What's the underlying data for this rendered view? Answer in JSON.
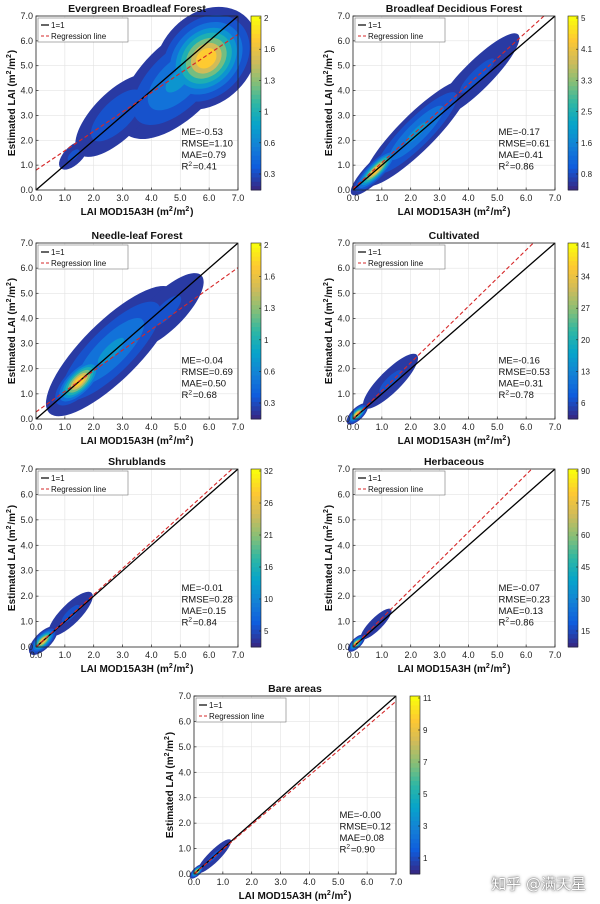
{
  "watermark": "知乎 @满天星",
  "colormap": [
    "#352a87",
    "#0f5cdd",
    "#1481d6",
    "#06a4ca",
    "#2eb7a4",
    "#87bf77",
    "#d1bb59",
    "#fec832",
    "#f9fb0e"
  ],
  "line_colors": {
    "one_to_one": "#000000",
    "regression": "#d62728"
  },
  "chart_data": [
    {
      "type": "scatter",
      "title": "Evergreen Broadleaf Forest",
      "xlabel": "LAI MOD15A3H (m²/m²)",
      "ylabel": "Estimated LAI (m²/m²)",
      "xlim": [
        0,
        7
      ],
      "ylim": [
        0,
        7
      ],
      "xticks": [
        "0.0",
        "1.0",
        "2.0",
        "3.0",
        "4.0",
        "5.0",
        "6.0",
        "7.0"
      ],
      "yticks": [
        "0.0",
        "1.0",
        "2.0",
        "3.0",
        "4.0",
        "5.0",
        "6.0",
        "7.0"
      ],
      "legend": [
        "1=1",
        "Regression line"
      ],
      "legend_position": "top-left",
      "stats": [
        "ME=-0.53",
        "RMSE=1.10",
        "MAE=0.79",
        "R²=0.41"
      ],
      "colorbar_ticks": [
        "2",
        "1.6",
        "1.3",
        "1",
        "0.6",
        "0.3"
      ],
      "regression": {
        "slope": 0.78,
        "intercept": 0.8
      },
      "density_clusters": [
        {
          "x": 5.9,
          "y": 5.3,
          "sx": 0.55,
          "sy": 0.9,
          "rho": 0.1,
          "peak": 1.0
        },
        {
          "x": 4.9,
          "y": 4.4,
          "sx": 0.9,
          "sy": 1.1,
          "rho": 0.5,
          "peak": 0.35
        },
        {
          "x": 2.8,
          "y": 3.0,
          "sx": 0.9,
          "sy": 0.8,
          "rho": 0.6,
          "peak": 0.18
        },
        {
          "x": 1.3,
          "y": 1.4,
          "sx": 0.35,
          "sy": 0.35,
          "rho": 0.5,
          "peak": 0.12
        }
      ]
    },
    {
      "type": "scatter",
      "title": "Broadleaf Decidious Forest",
      "xlabel": "LAI MOD15A3H (m²/m²)",
      "ylabel": "Estimated LAI (m²/m²)",
      "xlim": [
        0,
        7
      ],
      "ylim": [
        0,
        7
      ],
      "xticks": [
        "0.0",
        "1.0",
        "2.0",
        "3.0",
        "4.0",
        "5.0",
        "6.0",
        "7.0"
      ],
      "yticks": [
        "0.0",
        "1.0",
        "2.0",
        "3.0",
        "4.0",
        "5.0",
        "6.0",
        "7.0"
      ],
      "legend": [
        "1=1",
        "Regression line"
      ],
      "legend_position": "top-left",
      "stats": [
        "ME=-0.17",
        "RMSE=0.61",
        "MAE=0.41",
        "R²=0.86"
      ],
      "colorbar_ticks": [
        "5",
        "4.1",
        "3.3",
        "2.5",
        "1.6",
        "0.8"
      ],
      "regression": {
        "slope": 1.05,
        "intercept": 0.05
      },
      "density_clusters": [
        {
          "x": 0.8,
          "y": 0.8,
          "sx": 0.35,
          "sy": 0.35,
          "rho": 0.8,
          "peak": 1.0
        },
        {
          "x": 2.2,
          "y": 2.3,
          "sx": 0.9,
          "sy": 0.9,
          "rho": 0.85,
          "peak": 0.35
        },
        {
          "x": 4.3,
          "y": 4.6,
          "sx": 1.0,
          "sy": 1.0,
          "rho": 0.85,
          "peak": 0.12
        }
      ]
    },
    {
      "type": "scatter",
      "title": "Needle-leaf Forest",
      "xlabel": "LAI MOD15A3H (m²/m²)",
      "ylabel": "Estimated LAI (m²/m²)",
      "xlim": [
        0,
        7
      ],
      "ylim": [
        0,
        7
      ],
      "xticks": [
        "0.0",
        "1.0",
        "2.0",
        "3.0",
        "4.0",
        "5.0",
        "6.0",
        "7.0"
      ],
      "yticks": [
        "0.0",
        "1.0",
        "2.0",
        "3.0",
        "4.0",
        "5.0",
        "6.0",
        "7.0"
      ],
      "legend": [
        "1=1",
        "Regression line"
      ],
      "legend_position": "top-left",
      "stats": [
        "ME=-0.04",
        "RMSE=0.69",
        "MAE=0.50",
        "R²=0.68"
      ],
      "colorbar_ticks": [
        "2",
        "1.6",
        "1.3",
        "1",
        "0.6",
        "0.3"
      ],
      "regression": {
        "slope": 0.82,
        "intercept": 0.28
      },
      "density_clusters": [
        {
          "x": 1.5,
          "y": 1.5,
          "sx": 0.4,
          "sy": 0.4,
          "rho": 0.6,
          "peak": 1.0
        },
        {
          "x": 2.6,
          "y": 2.7,
          "sx": 1.1,
          "sy": 1.1,
          "rho": 0.75,
          "peak": 0.35
        },
        {
          "x": 4.5,
          "y": 4.3,
          "sx": 0.9,
          "sy": 0.9,
          "rho": 0.7,
          "peak": 0.12
        }
      ]
    },
    {
      "type": "scatter",
      "title": "Cultivated",
      "xlabel": "LAI MOD15A3H (m²/m²)",
      "ylabel": "Estimated LAI (m²/m²)",
      "xlim": [
        0,
        7
      ],
      "ylim": [
        0,
        7
      ],
      "xticks": [
        "0.0",
        "1.0",
        "2.0",
        "3.0",
        "4.0",
        "5.0",
        "6.0",
        "7.0"
      ],
      "yticks": [
        "0.0",
        "1.0",
        "2.0",
        "3.0",
        "4.0",
        "5.0",
        "6.0",
        "7.0"
      ],
      "legend": [
        "1=1",
        "Regression line"
      ],
      "legend_position": "top-left",
      "stats": [
        "ME=-0.16",
        "RMSE=0.53",
        "MAE=0.31",
        "R²=0.78"
      ],
      "colorbar_ticks": [
        "41",
        "34",
        "27",
        "20",
        "13",
        "6"
      ],
      "regression": {
        "slope": 1.12,
        "intercept": 0.0
      },
      "density_clusters": [
        {
          "x": 0.15,
          "y": 0.2,
          "sx": 0.15,
          "sy": 0.15,
          "rho": 0.6,
          "peak": 1.0
        },
        {
          "x": 1.3,
          "y": 1.5,
          "sx": 0.6,
          "sy": 0.7,
          "rho": 0.8,
          "peak": 0.12
        }
      ]
    },
    {
      "type": "scatter",
      "title": "Shrublands",
      "xlabel": "LAI MOD15A3H (m²/m²)",
      "ylabel": "Estimated LAI (m²/m²)",
      "xlim": [
        0,
        7
      ],
      "ylim": [
        0,
        7
      ],
      "xticks": [
        "0.0",
        "1.0",
        "2.0",
        "3.0",
        "4.0",
        "5.0",
        "6.0",
        "7.0"
      ],
      "yticks": [
        "0.0",
        "1.0",
        "2.0",
        "3.0",
        "4.0",
        "5.0",
        "6.0",
        "7.0"
      ],
      "legend": [
        "1=1",
        "Regression line"
      ],
      "legend_position": "top-left",
      "stats": [
        "ME=-0.01",
        "RMSE=0.28",
        "MAE=0.15",
        "R²=0.84"
      ],
      "colorbar_ticks": [
        "32",
        "26",
        "21",
        "16",
        "10",
        "5"
      ],
      "regression": {
        "slope": 1.03,
        "intercept": 0.0
      },
      "density_clusters": [
        {
          "x": 0.25,
          "y": 0.25,
          "sx": 0.2,
          "sy": 0.2,
          "rho": 0.6,
          "peak": 1.0
        },
        {
          "x": 1.2,
          "y": 1.3,
          "sx": 0.55,
          "sy": 0.5,
          "rho": 0.75,
          "peak": 0.12
        }
      ]
    },
    {
      "type": "scatter",
      "title": "Herbaceous",
      "xlabel": "LAI MOD15A3H (m²/m²)",
      "ylabel": "Estimated LAI (m²/m²)",
      "xlim": [
        0,
        7
      ],
      "ylim": [
        0,
        7
      ],
      "xticks": [
        "0.0",
        "1.0",
        "2.0",
        "3.0",
        "4.0",
        "5.0",
        "6.0",
        "7.0"
      ],
      "yticks": [
        "0.0",
        "1.0",
        "2.0",
        "3.0",
        "4.0",
        "5.0",
        "6.0",
        "7.0"
      ],
      "legend": [
        "1=1",
        "Regression line"
      ],
      "legend_position": "top-left",
      "stats": [
        "ME=-0.07",
        "RMSE=0.23",
        "MAE=0.13",
        "R²=0.86"
      ],
      "colorbar_ticks": [
        "90",
        "75",
        "60",
        "45",
        "30",
        "15"
      ],
      "regression": {
        "slope": 1.13,
        "intercept": 0.0
      },
      "density_clusters": [
        {
          "x": 0.12,
          "y": 0.15,
          "sx": 0.12,
          "sy": 0.12,
          "rho": 0.6,
          "peak": 1.0
        },
        {
          "x": 0.8,
          "y": 0.9,
          "sx": 0.4,
          "sy": 0.4,
          "rho": 0.8,
          "peak": 0.1
        }
      ]
    },
    {
      "type": "scatter",
      "title": "Bare areas",
      "xlabel": "LAI MOD15A3H (m²/m²)",
      "ylabel": "Estimated LAI (m²/m²)",
      "xlim": [
        0,
        7
      ],
      "ylim": [
        0,
        7
      ],
      "xticks": [
        "0.0",
        "1.0",
        "2.0",
        "3.0",
        "4.0",
        "5.0",
        "6.0",
        "7.0"
      ],
      "yticks": [
        "0.0",
        "1.0",
        "2.0",
        "3.0",
        "4.0",
        "5.0",
        "6.0",
        "7.0"
      ],
      "legend": [
        "1=1",
        "Regression line"
      ],
      "legend_position": "top-left",
      "stats": [
        "ME=-0.00",
        "RMSE=0.12",
        "MAE=0.08",
        "R²=0.90"
      ],
      "colorbar_ticks": [
        "11",
        "9",
        "7",
        "5",
        "3",
        "1"
      ],
      "regression": {
        "slope": 0.97,
        "intercept": 0.0
      },
      "density_clusters": [
        {
          "x": 0.1,
          "y": 0.1,
          "sx": 0.1,
          "sy": 0.1,
          "rho": 0.6,
          "peak": 1.0
        },
        {
          "x": 0.7,
          "y": 0.7,
          "sx": 0.4,
          "sy": 0.4,
          "rho": 0.85,
          "peak": 0.12
        }
      ]
    }
  ]
}
